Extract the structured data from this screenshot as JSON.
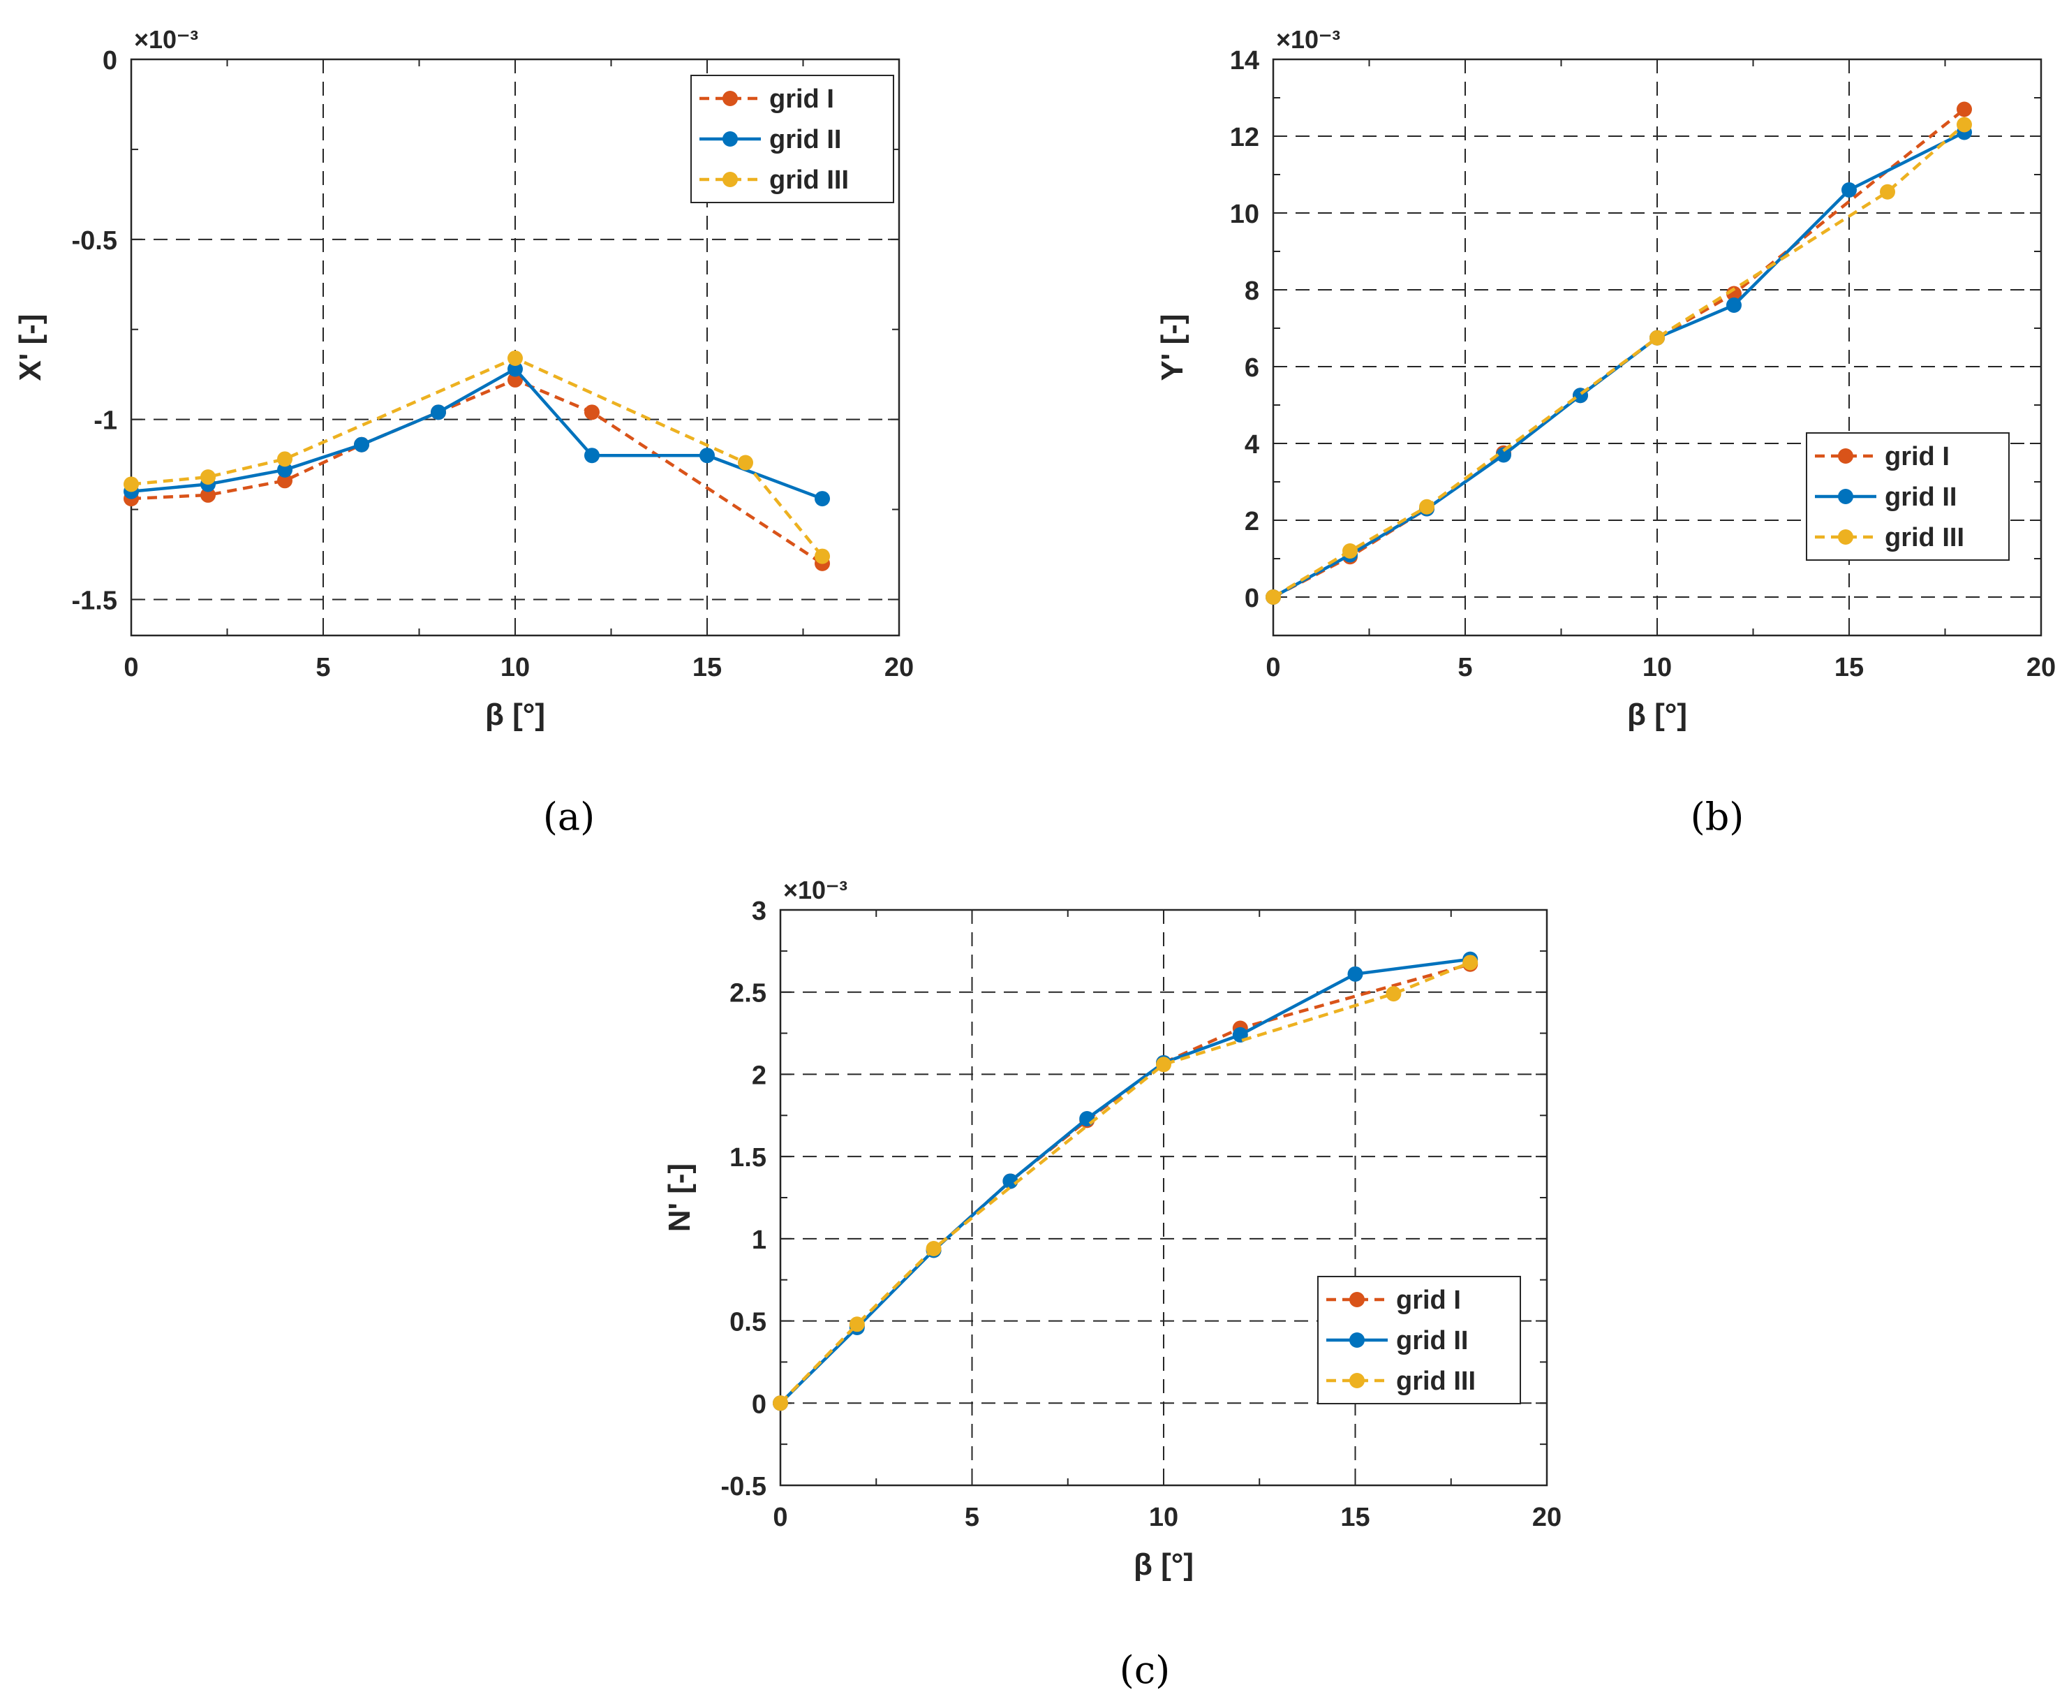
{
  "series_styles": [
    {
      "name": "grid I",
      "color": "#D95319",
      "dash": "dashed"
    },
    {
      "name": "grid II",
      "color": "#0072BD",
      "dash": "solid"
    },
    {
      "name": "grid III",
      "color": "#EDB120",
      "dash": "dashed"
    }
  ],
  "chart_data": [
    {
      "type": "line",
      "panel_label": "(a)",
      "xlabel": "β [°]",
      "ylabel": "X' [-]",
      "y_scale_label": "×10⁻³",
      "xlim": [
        0,
        20
      ],
      "ylim": [
        -1.6,
        0
      ],
      "xticks": [
        0,
        5,
        10,
        15,
        20
      ],
      "xtick_labels": [
        "0",
        "5",
        "10",
        "15",
        "20"
      ],
      "yticks": [
        -1.5,
        -1,
        -0.5,
        0
      ],
      "ytick_labels": [
        "-1.5",
        "-1",
        "-0.5",
        "0"
      ],
      "grid": true,
      "legend_position": "top-right",
      "series": [
        {
          "name": "grid I",
          "x": [
            0,
            2,
            4,
            6,
            8,
            10,
            12,
            18
          ],
          "y": [
            -1.22,
            -1.21,
            -1.17,
            -1.07,
            -0.98,
            -0.89,
            -0.98,
            -1.4
          ]
        },
        {
          "name": "grid II",
          "x": [
            0,
            2,
            4,
            6,
            8,
            10,
            12,
            15,
            18
          ],
          "y": [
            -1.2,
            -1.18,
            -1.14,
            -1.07,
            -0.98,
            -0.86,
            -1.1,
            -1.1,
            -1.22
          ]
        },
        {
          "name": "grid III",
          "x": [
            0,
            2,
            4,
            10,
            16,
            18
          ],
          "y": [
            -1.18,
            -1.16,
            -1.11,
            -0.83,
            -1.12,
            -1.38
          ]
        }
      ]
    },
    {
      "type": "line",
      "panel_label": "(b)",
      "xlabel": "β [°]",
      "ylabel": "Y' [-]",
      "y_scale_label": "×10⁻³",
      "xlim": [
        0,
        20
      ],
      "ylim": [
        -1,
        14
      ],
      "xticks": [
        0,
        5,
        10,
        15,
        20
      ],
      "xtick_labels": [
        "0",
        "5",
        "10",
        "15",
        "20"
      ],
      "yticks": [
        0,
        2,
        4,
        6,
        8,
        10,
        12,
        14
      ],
      "ytick_labels": [
        "0",
        "2",
        "4",
        "6",
        "8",
        "10",
        "12",
        "14"
      ],
      "grid": true,
      "legend_position": "center-right",
      "series": [
        {
          "name": "grid I",
          "x": [
            0,
            2,
            4,
            6,
            8,
            10,
            12,
            18
          ],
          "y": [
            0,
            1.05,
            2.3,
            3.75,
            5.25,
            6.75,
            7.9,
            12.7
          ]
        },
        {
          "name": "grid II",
          "x": [
            0,
            2,
            4,
            6,
            8,
            10,
            12,
            15,
            18
          ],
          "y": [
            0,
            1.1,
            2.3,
            3.7,
            5.25,
            6.75,
            7.6,
            10.6,
            12.1
          ]
        },
        {
          "name": "grid III",
          "x": [
            0,
            2,
            4,
            10,
            16,
            18
          ],
          "y": [
            0,
            1.2,
            2.35,
            6.75,
            10.55,
            12.3
          ]
        }
      ]
    },
    {
      "type": "line",
      "panel_label": "(c)",
      "xlabel": "β [°]",
      "ylabel": "N' [-]",
      "y_scale_label": "×10⁻³",
      "xlim": [
        0,
        20
      ],
      "ylim": [
        -0.5,
        3
      ],
      "xticks": [
        0,
        5,
        10,
        15,
        20
      ],
      "xtick_labels": [
        "0",
        "5",
        "10",
        "15",
        "20"
      ],
      "yticks": [
        -0.5,
        0,
        0.5,
        1,
        1.5,
        2,
        2.5,
        3
      ],
      "ytick_labels": [
        "-0.5",
        "0",
        "0.5",
        "1",
        "1.5",
        "2",
        "2.5",
        "3"
      ],
      "grid": true,
      "legend_position": "bottom-right",
      "series": [
        {
          "name": "grid I",
          "x": [
            0,
            2,
            4,
            6,
            8,
            10,
            12,
            18
          ],
          "y": [
            0,
            0.47,
            0.93,
            1.35,
            1.72,
            2.07,
            2.28,
            2.67
          ]
        },
        {
          "name": "grid II",
          "x": [
            0,
            2,
            4,
            6,
            8,
            10,
            12,
            15,
            18
          ],
          "y": [
            0,
            0.46,
            0.93,
            1.35,
            1.73,
            2.07,
            2.24,
            2.61,
            2.7
          ]
        },
        {
          "name": "grid III",
          "x": [
            0,
            2,
            4,
            10,
            16,
            18
          ],
          "y": [
            0,
            0.48,
            0.94,
            2.06,
            2.49,
            2.68
          ]
        }
      ]
    }
  ]
}
